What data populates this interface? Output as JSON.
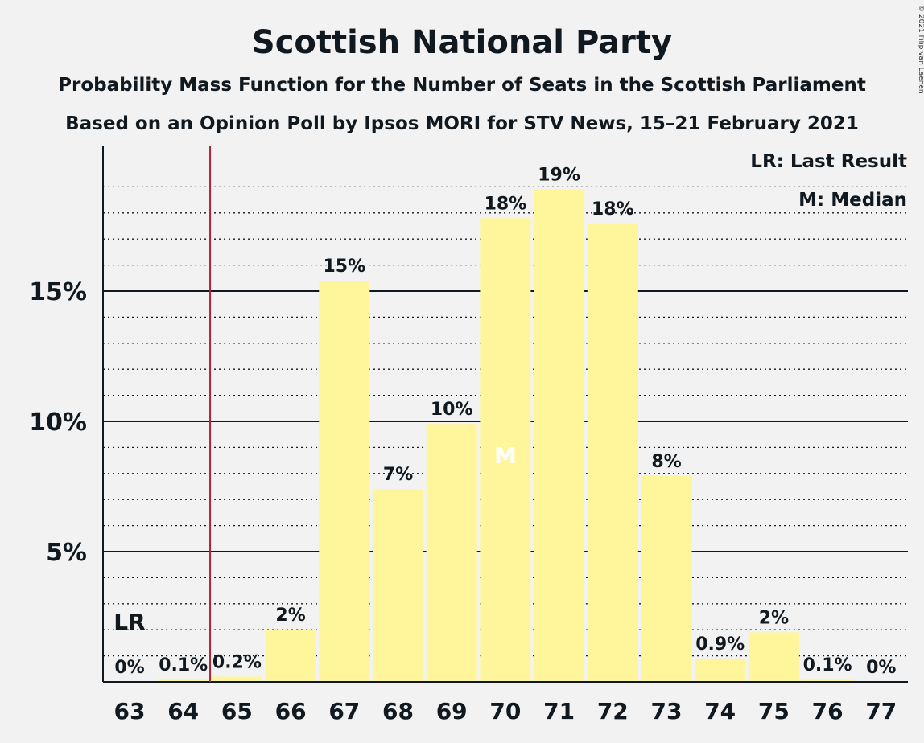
{
  "title": "Scottish National Party",
  "subtitle_1": "Probability Mass Function for the Number of Seats in the Scottish Parliament",
  "subtitle_2": "Based on an Opinion Poll by Ipsos MORI for STV News, 15–21 February 2021",
  "copyright": "© 2021 Filip van Laenen",
  "legend": {
    "last_result": "LR: Last Result",
    "median": "M: Median"
  },
  "markers": {
    "last_result_label": "LR",
    "last_result_seats": 64.5,
    "median_label": "M",
    "median_seats": 70
  },
  "colors": {
    "bar": "#fff59a",
    "last_result_line": "#b22234",
    "grid": "#101820",
    "axis": "#101820"
  },
  "chart_data": {
    "type": "bar",
    "categories": [
      "63",
      "64",
      "65",
      "66",
      "67",
      "68",
      "69",
      "70",
      "71",
      "72",
      "73",
      "74",
      "75",
      "76",
      "77"
    ],
    "values": [
      0,
      0.1,
      0.2,
      2,
      15.4,
      7.4,
      9.9,
      17.8,
      18.9,
      17.6,
      7.9,
      0.9,
      1.9,
      0.1,
      0
    ],
    "labels": [
      "0%",
      "0.1%",
      "0.2%",
      "2%",
      "15%",
      "7%",
      "10%",
      "18%",
      "19%",
      "18%",
      "8%",
      "0.9%",
      "2%",
      "0.1%",
      "0%"
    ],
    "yticks": [
      5,
      10,
      15
    ],
    "ytick_labels": [
      "5%",
      "10%",
      "15%"
    ],
    "ylim": [
      0,
      20
    ],
    "minor_grid_step": 1,
    "grid": true,
    "legend_position": "top-right"
  }
}
